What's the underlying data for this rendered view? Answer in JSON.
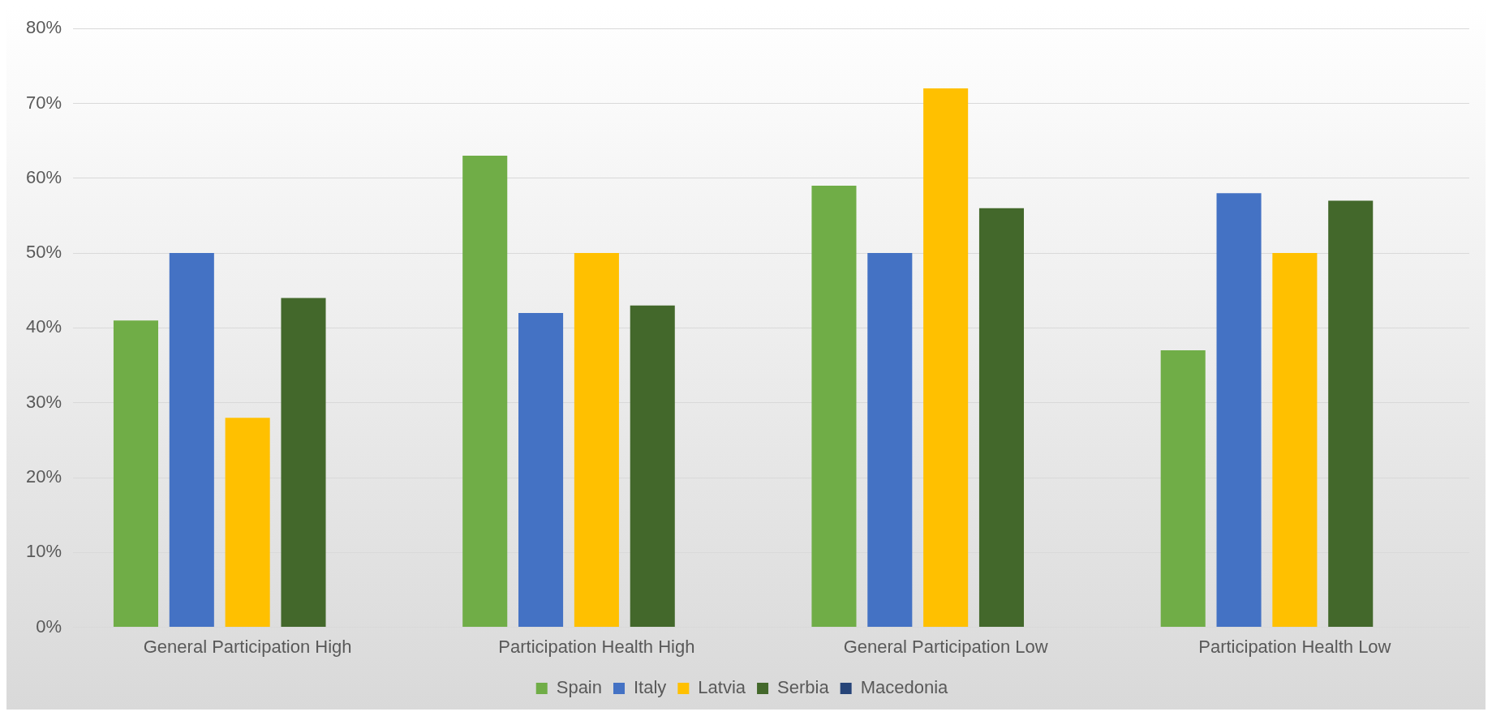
{
  "chart_data": {
    "type": "bar",
    "categories": [
      "General Participation High",
      "Participation Health High",
      "General Participation Low",
      "Participation Health Low"
    ],
    "series": [
      {
        "name": "Spain",
        "color": "#70ad47",
        "values": [
          41,
          63,
          59,
          37
        ]
      },
      {
        "name": "Italy",
        "color": "#4472c4",
        "values": [
          50,
          42,
          50,
          58
        ]
      },
      {
        "name": "Latvia",
        "color": "#ffc000",
        "values": [
          28,
          50,
          72,
          50
        ]
      },
      {
        "name": "Serbia",
        "color": "#43682b",
        "values": [
          44,
          43,
          56,
          57
        ]
      },
      {
        "name": "Macedonia",
        "color": "#264478",
        "values": [
          null,
          null,
          null,
          null
        ]
      }
    ],
    "ylim": [
      0,
      80
    ],
    "yticks": [
      {
        "value": 0,
        "label": "0%"
      },
      {
        "value": 10,
        "label": "10%"
      },
      {
        "value": 20,
        "label": "20%"
      },
      {
        "value": 30,
        "label": "30%"
      },
      {
        "value": 40,
        "label": "40%"
      },
      {
        "value": 50,
        "label": "50%"
      },
      {
        "value": 60,
        "label": "60%"
      },
      {
        "value": 70,
        "label": "70%"
      },
      {
        "value": 80,
        "label": "80%"
      }
    ],
    "grid": "y",
    "legend": "bottom"
  }
}
